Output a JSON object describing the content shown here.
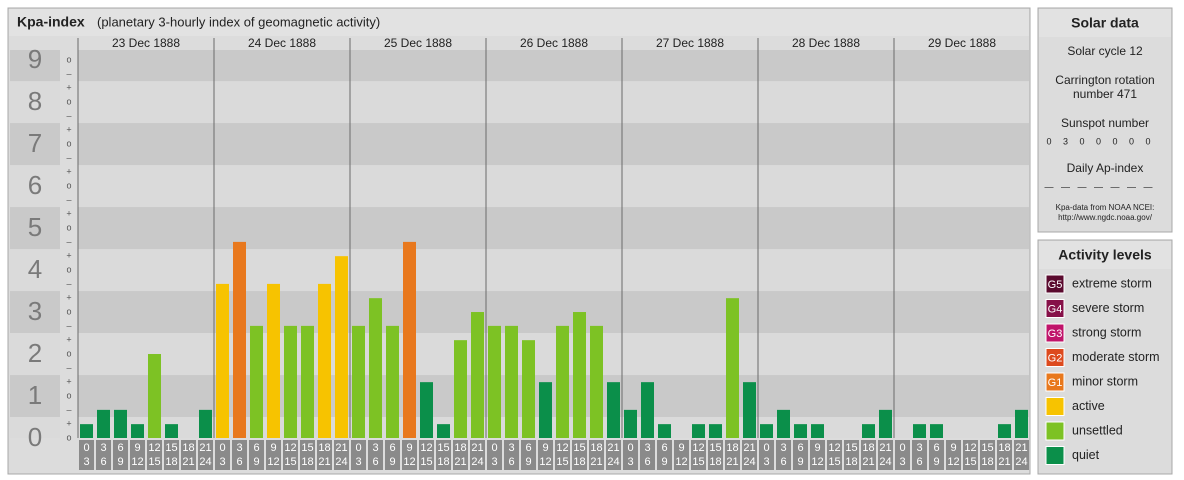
{
  "chart_data": {
    "type": "bar",
    "title": "Kpa-index",
    "subtitle": "(planetary 3-hourly index of geomagnetic activity)",
    "days": [
      "23 Dec 1888",
      "24 Dec 1888",
      "25 Dec 1888",
      "26 Dec 1888",
      "27 Dec 1888",
      "28 Dec 1888",
      "29 Dec 1888"
    ],
    "hour_slots": [
      [
        "0",
        "3"
      ],
      [
        "3",
        "6"
      ],
      [
        "6",
        "9"
      ],
      [
        "9",
        "12"
      ],
      [
        "12",
        "15"
      ],
      [
        "15",
        "18"
      ],
      [
        "18",
        "21"
      ],
      [
        "21",
        "24"
      ]
    ],
    "values": [
      0.33,
      0.67,
      0.67,
      0.33,
      2,
      0.33,
      0,
      0.67,
      3.67,
      4.67,
      2.67,
      3.67,
      2.67,
      2.67,
      3.67,
      4.33,
      2.67,
      3.33,
      2.67,
      4.67,
      1.33,
      0.33,
      2.33,
      3,
      2.67,
      2.67,
      2.33,
      1.33,
      2.67,
      3,
      2.67,
      1.33,
      0.67,
      1.33,
      0.33,
      0,
      0.33,
      0.33,
      3.33,
      1.33,
      0.33,
      0.67,
      0.33,
      0.33,
      0,
      0,
      0.33,
      0.67,
      0,
      0.33,
      0.33,
      0,
      0,
      0,
      0.33,
      0.67
    ],
    "colors": [
      "#0b8f4a",
      "#0b8f4a",
      "#0b8f4a",
      "#0b8f4a",
      "#7dc224",
      "#0b8f4a",
      "#0b8f4a",
      "#0b8f4a",
      "#f7c300",
      "#e8781d",
      "#7dc224",
      "#f7c300",
      "#7dc224",
      "#7dc224",
      "#f7c300",
      "#f7c300",
      "#7dc224",
      "#7dc224",
      "#7dc224",
      "#e8781d",
      "#0b8f4a",
      "#0b8f4a",
      "#7dc224",
      "#7dc224",
      "#7dc224",
      "#7dc224",
      "#7dc224",
      "#0b8f4a",
      "#7dc224",
      "#7dc224",
      "#7dc224",
      "#0b8f4a",
      "#0b8f4a",
      "#0b8f4a",
      "#0b8f4a",
      "#0b8f4a",
      "#0b8f4a",
      "#0b8f4a",
      "#7dc224",
      "#0b8f4a",
      "#0b8f4a",
      "#0b8f4a",
      "#0b8f4a",
      "#0b8f4a",
      "#0b8f4a",
      "#0b8f4a",
      "#0b8f4a",
      "#0b8f4a",
      "#0b8f4a",
      "#0b8f4a",
      "#0b8f4a",
      "#0b8f4a",
      "#0b8f4a",
      "#0b8f4a",
      "#0b8f4a",
      "#0b8f4a"
    ],
    "ylim": [
      0,
      9.24
    ],
    "yticks": [
      0,
      1,
      2,
      3,
      4,
      5,
      6,
      7,
      8,
      9
    ],
    "minor_labels": [
      "o",
      "+",
      "–"
    ]
  },
  "solar_data": {
    "title": "Solar data",
    "cycle": "Solar cycle 12",
    "carrington_1": "Carrington rotation",
    "carrington_2": "number 471",
    "sunspot_title": "Sunspot number",
    "sunspots": [
      0,
      3,
      0,
      0,
      0,
      0,
      0
    ],
    "ap_title": "Daily Ap-index",
    "ap": [
      "—",
      "—",
      "—",
      "—",
      "—",
      "—",
      "—"
    ],
    "source_1": "Kpa-data from NOAA NCEI:",
    "source_2": "http://www.ngdc.noaa.gov/"
  },
  "activity_levels": {
    "title": "Activity levels",
    "items": [
      {
        "badge": "G5",
        "name": "extreme storm",
        "color": "#5a0a2e"
      },
      {
        "badge": "G4",
        "name": "severe storm",
        "color": "#861048"
      },
      {
        "badge": "G3",
        "name": "strong storm",
        "color": "#c0136a"
      },
      {
        "badge": "G2",
        "name": "moderate storm",
        "color": "#dd4a1e"
      },
      {
        "badge": "G1",
        "name": "minor storm",
        "color": "#e8781d"
      },
      {
        "name": "active",
        "color": "#f7c300"
      },
      {
        "name": "unsettled",
        "color": "#7dc224"
      },
      {
        "name": "quiet",
        "color": "#0b8f4a"
      }
    ]
  }
}
